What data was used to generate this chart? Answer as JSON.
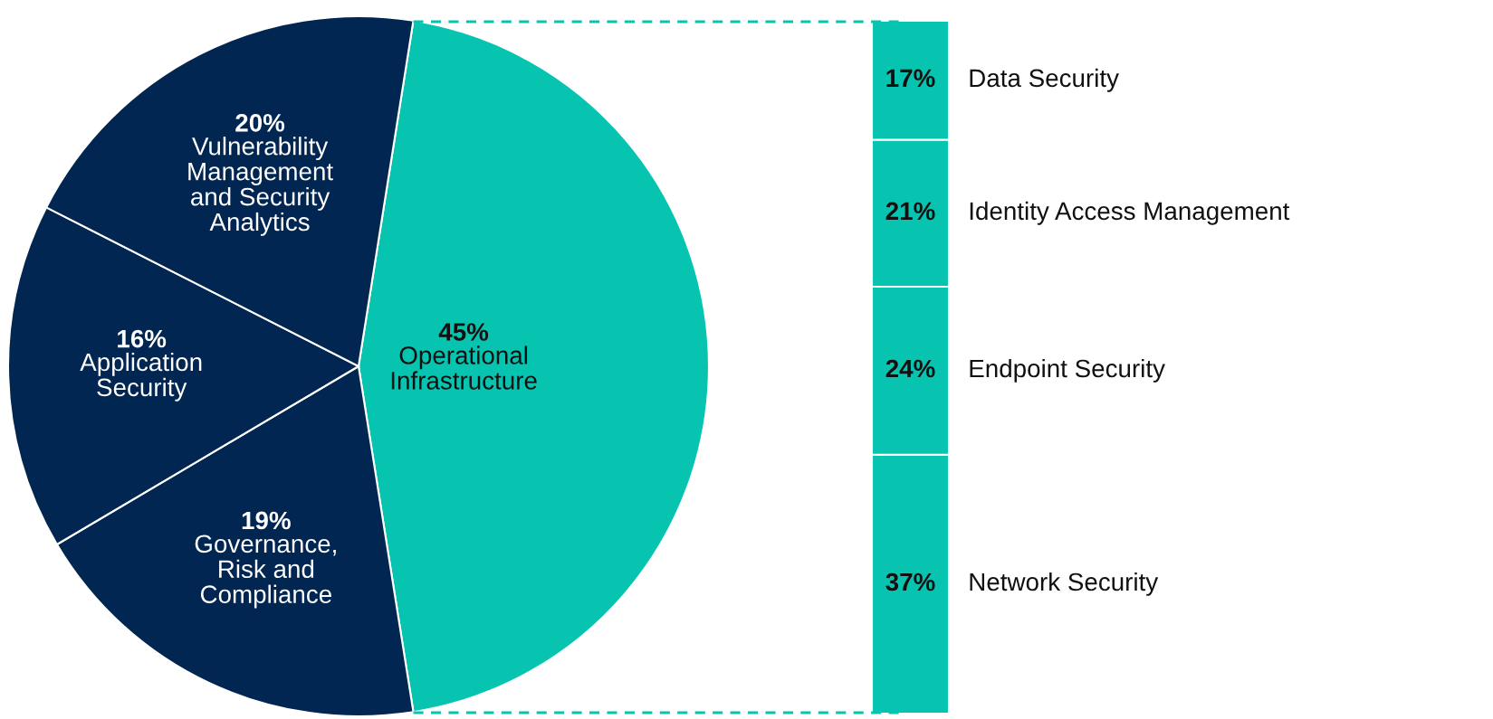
{
  "chart_data": [
    {
      "type": "pie",
      "categories": [
        "Operational\nInfrastructure",
        "Governance,\nRisk and\nCompliance",
        "Application\nSecurity",
        "Vulnerability\nManagement\nand Security\nAnalytics"
      ],
      "values": [
        45,
        19,
        16,
        20
      ],
      "colors": [
        "#07c4b0",
        "#012652",
        "#012652",
        "#012652"
      ],
      "value_labels": [
        "45%",
        "19%",
        "16%",
        "20%"
      ]
    },
    {
      "type": "bar",
      "stacked": true,
      "tick_labels": false,
      "categories": [
        null
      ],
      "series": [
        {
          "name": "Network Security",
          "color": "#07c4b0",
          "values": [
            37
          ],
          "value_labels": [
            "37%"
          ]
        },
        {
          "name": "Endpoint Security",
          "color": "#07c4b0",
          "values": [
            24
          ],
          "value_labels": [
            "24%"
          ]
        },
        {
          "name": "Identity Access Management",
          "color": "#07c4b0",
          "values": [
            21
          ],
          "value_labels": [
            "21%"
          ]
        },
        {
          "name": "Data Security",
          "color": "#07c4b0",
          "values": [
            17
          ],
          "value_labels": [
            "17%"
          ]
        }
      ]
    }
  ]
}
